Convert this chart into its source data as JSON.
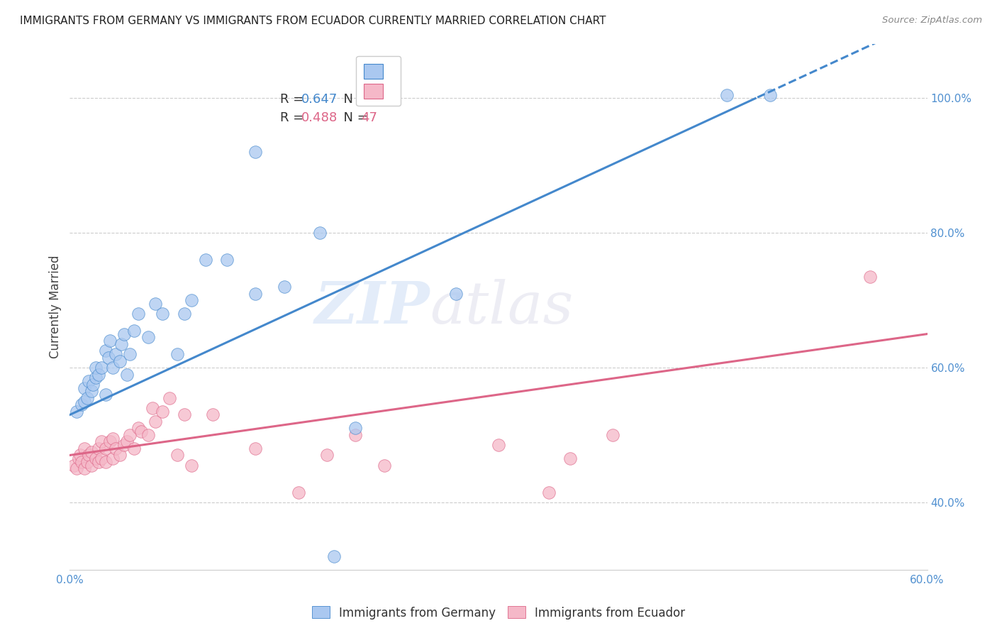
{
  "title": "IMMIGRANTS FROM GERMANY VS IMMIGRANTS FROM ECUADOR CURRENTLY MARRIED CORRELATION CHART",
  "source": "Source: ZipAtlas.com",
  "ylabel": "Currently Married",
  "watermark_zip": "ZIP",
  "watermark_atlas": "atlas",
  "xlim": [
    0.0,
    0.6
  ],
  "ylim": [
    0.3,
    1.08
  ],
  "yticks": [
    0.4,
    0.6,
    0.8,
    1.0
  ],
  "xticks": [
    0.0,
    0.1,
    0.2,
    0.3,
    0.4,
    0.5,
    0.6
  ],
  "germany_color": "#aac8f0",
  "ecuador_color": "#f5b8c8",
  "germany_line_color": "#4488cc",
  "ecuador_line_color": "#dd6688",
  "germany_x": [
    0.005,
    0.008,
    0.01,
    0.01,
    0.012,
    0.013,
    0.015,
    0.016,
    0.018,
    0.018,
    0.02,
    0.022,
    0.025,
    0.025,
    0.027,
    0.028,
    0.03,
    0.032,
    0.035,
    0.036,
    0.038,
    0.04,
    0.042,
    0.045,
    0.048,
    0.055,
    0.06,
    0.065,
    0.075,
    0.08,
    0.085,
    0.095,
    0.11,
    0.13,
    0.15,
    0.175,
    0.2,
    0.27,
    0.46,
    0.49
  ],
  "germany_y": [
    0.535,
    0.545,
    0.55,
    0.57,
    0.555,
    0.58,
    0.565,
    0.575,
    0.585,
    0.6,
    0.59,
    0.6,
    0.56,
    0.625,
    0.615,
    0.64,
    0.6,
    0.62,
    0.61,
    0.635,
    0.65,
    0.59,
    0.62,
    0.655,
    0.68,
    0.645,
    0.695,
    0.68,
    0.62,
    0.68,
    0.7,
    0.76,
    0.76,
    0.71,
    0.72,
    0.8,
    0.51,
    0.71,
    1.005,
    1.005
  ],
  "ecuador_x": [
    0.003,
    0.005,
    0.006,
    0.007,
    0.008,
    0.01,
    0.01,
    0.012,
    0.013,
    0.015,
    0.015,
    0.018,
    0.02,
    0.02,
    0.022,
    0.022,
    0.025,
    0.025,
    0.028,
    0.03,
    0.03,
    0.032,
    0.035,
    0.038,
    0.04,
    0.042,
    0.045,
    0.048,
    0.05,
    0.055,
    0.058,
    0.06,
    0.065,
    0.07,
    0.075,
    0.08,
    0.085,
    0.1,
    0.13,
    0.16,
    0.18,
    0.2,
    0.22,
    0.3,
    0.35,
    0.38,
    0.56
  ],
  "ecuador_y": [
    0.455,
    0.45,
    0.465,
    0.47,
    0.46,
    0.45,
    0.48,
    0.46,
    0.47,
    0.455,
    0.475,
    0.465,
    0.46,
    0.48,
    0.465,
    0.49,
    0.46,
    0.48,
    0.49,
    0.465,
    0.495,
    0.48,
    0.47,
    0.485,
    0.49,
    0.5,
    0.48,
    0.51,
    0.505,
    0.5,
    0.54,
    0.52,
    0.535,
    0.555,
    0.47,
    0.53,
    0.455,
    0.53,
    0.48,
    0.415,
    0.47,
    0.5,
    0.455,
    0.485,
    0.465,
    0.5,
    0.735
  ],
  "germany_extra_blue_x": [
    0.13
  ],
  "germany_extra_blue_y": [
    0.92
  ],
  "germany_outlier_x": [
    0.185
  ],
  "germany_outlier_y": [
    0.32
  ],
  "ecuador_outlier_x": [
    0.335
  ],
  "ecuador_outlier_y": [
    0.415
  ]
}
